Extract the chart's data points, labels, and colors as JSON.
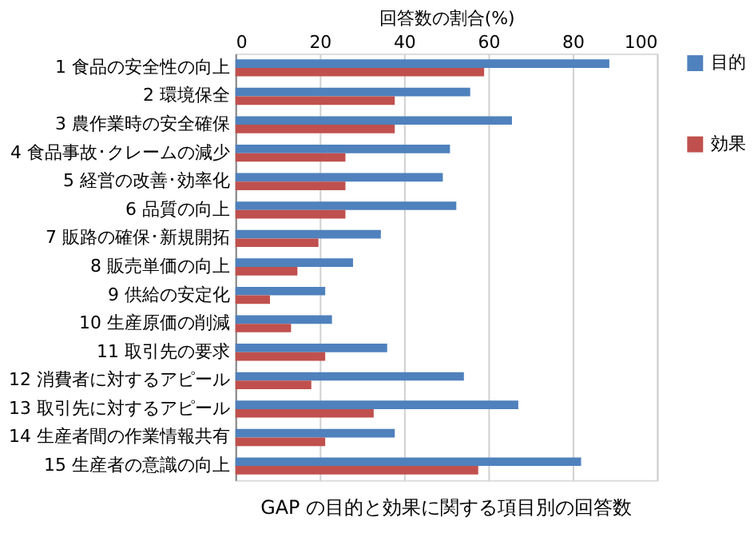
{
  "chart_data": {
    "type": "bar",
    "orientation": "horizontal",
    "title": "GAP の目的と効果に関する項目別の回答数",
    "xlabel": "回答数の割合(%)",
    "categories": [
      "1 食品の安全性の向上",
      "2 環境保全",
      "3 農作業時の安全確保",
      "4 食品事故･クレームの減少",
      "5 経営の改善･効率化",
      "6 品質の向上",
      "7 販路の確保･新規開拓",
      "8 販売単価の向上",
      "9 供給の安定化",
      "10 生産原価の削減",
      "11 取引先の要求",
      "12 消費者に対するアピール",
      "13 取引先に対するアピール",
      "14 生産者間の作業情報共有",
      "15 生産者の意識の向上"
    ],
    "series": [
      {
        "name": "目的",
        "color": "#4f81bd",
        "values": [
          88.7,
          55.7,
          65.6,
          50.9,
          49.2,
          52.4,
          34.5,
          27.9,
          21.3,
          22.9,
          36.0,
          54.2,
          67.1,
          37.8,
          82.0
        ]
      },
      {
        "name": "効果",
        "color": "#c0504d",
        "values": [
          59.0,
          37.8,
          37.8,
          26.1,
          26.1,
          26.1,
          19.7,
          14.7,
          8.2,
          13.2,
          21.3,
          18.0,
          32.8,
          21.3,
          57.6
        ]
      }
    ],
    "xlim": [
      0,
      100
    ],
    "xticks": [
      0,
      20,
      40,
      60,
      80,
      100
    ],
    "grid": "x",
    "legend": "right"
  }
}
